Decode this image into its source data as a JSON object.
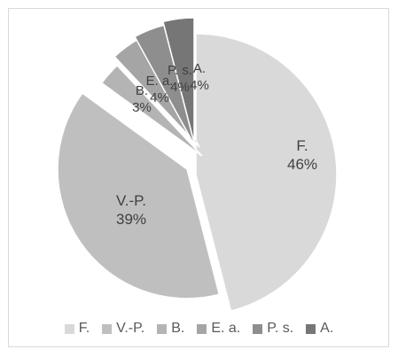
{
  "chart_data": {
    "type": "pie",
    "title": "",
    "slices": [
      {
        "label": "F.",
        "value": 46,
        "percent_label": "46%",
        "color": "#d9d9d9"
      },
      {
        "label": "V.-P.",
        "value": 39,
        "percent_label": "39%",
        "color": "#bfbfbf"
      },
      {
        "label": "B.",
        "value": 3,
        "percent_label": "3%",
        "color": "#b4b4b4"
      },
      {
        "label": "E. a.",
        "value": 4,
        "percent_label": "4%",
        "color": "#a5a5a5"
      },
      {
        "label": "P. s.",
        "value": 4,
        "percent_label": "4%",
        "color": "#8e8e8e"
      },
      {
        "label": "A.",
        "value": 4,
        "percent_label": "4%",
        "color": "#767676"
      }
    ],
    "legend_position": "bottom",
    "exploded": true
  }
}
